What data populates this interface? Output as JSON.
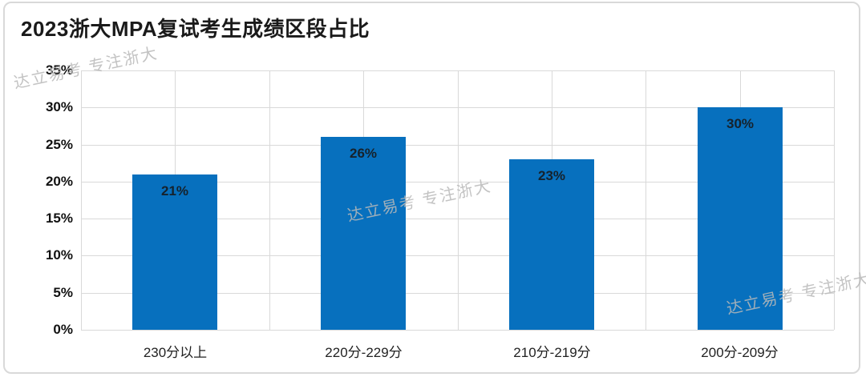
{
  "card": {
    "title": "2023浙大MPA复试考生成绩区段占比"
  },
  "watermark": {
    "text": "达立易考 专注浙大"
  },
  "chart_data": {
    "type": "bar",
    "title": "2023浙大MPA复试考生成绩区段占比",
    "categories": [
      "230分以上",
      "220分-229分",
      "210分-219分",
      "200分-209分"
    ],
    "values": [
      21,
      26,
      23,
      30
    ],
    "value_labels": [
      "21%",
      "26%",
      "23%",
      "30%"
    ],
    "xlabel": "",
    "ylabel": "",
    "ylim": [
      0,
      35
    ],
    "ytick_values": [
      0,
      5,
      10,
      15,
      20,
      25,
      30,
      35
    ],
    "ytick_labels": [
      "0%",
      "5%",
      "10%",
      "15%",
      "20%",
      "25%",
      "30%",
      "35%"
    ],
    "grid": "horizontal and vertical gridlines, light gray",
    "legend": "none",
    "label_position": "inside-top",
    "bar_color": "#0770be",
    "gridline_color": "#d9d9d9",
    "label_color": "#16222c"
  }
}
